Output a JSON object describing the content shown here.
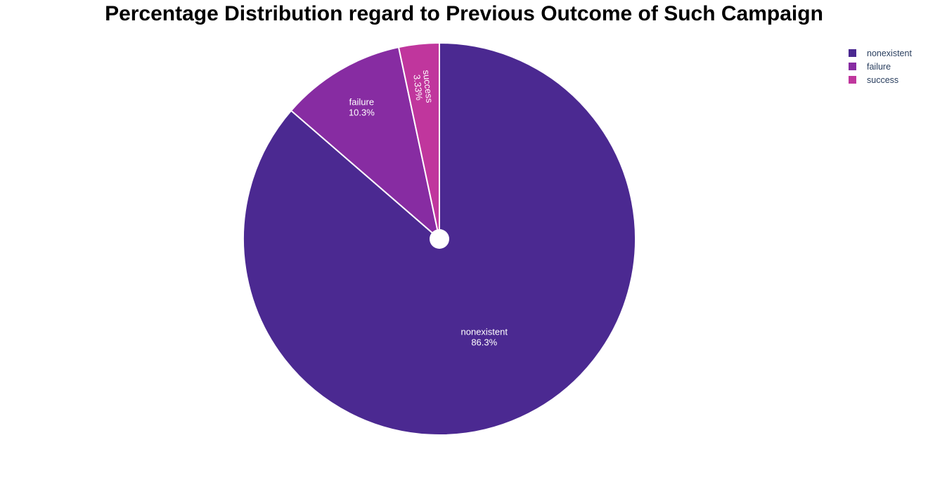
{
  "chart_data": {
    "type": "pie",
    "title": "Percentage Distribution regard to Previous Outcome of Such Campaign",
    "slices": [
      {
        "label": "nonexistent",
        "value": 86.3,
        "text": "86.3%",
        "color": "#4b2991"
      },
      {
        "label": "failure",
        "value": 10.3,
        "text": "10.3%",
        "color": "#872ca2"
      },
      {
        "label": "success",
        "value": 3.33,
        "text": "3.33%",
        "color": "#c0369d"
      }
    ],
    "direction": "clockwise",
    "legend_position": "top-right",
    "hole": "small"
  }
}
